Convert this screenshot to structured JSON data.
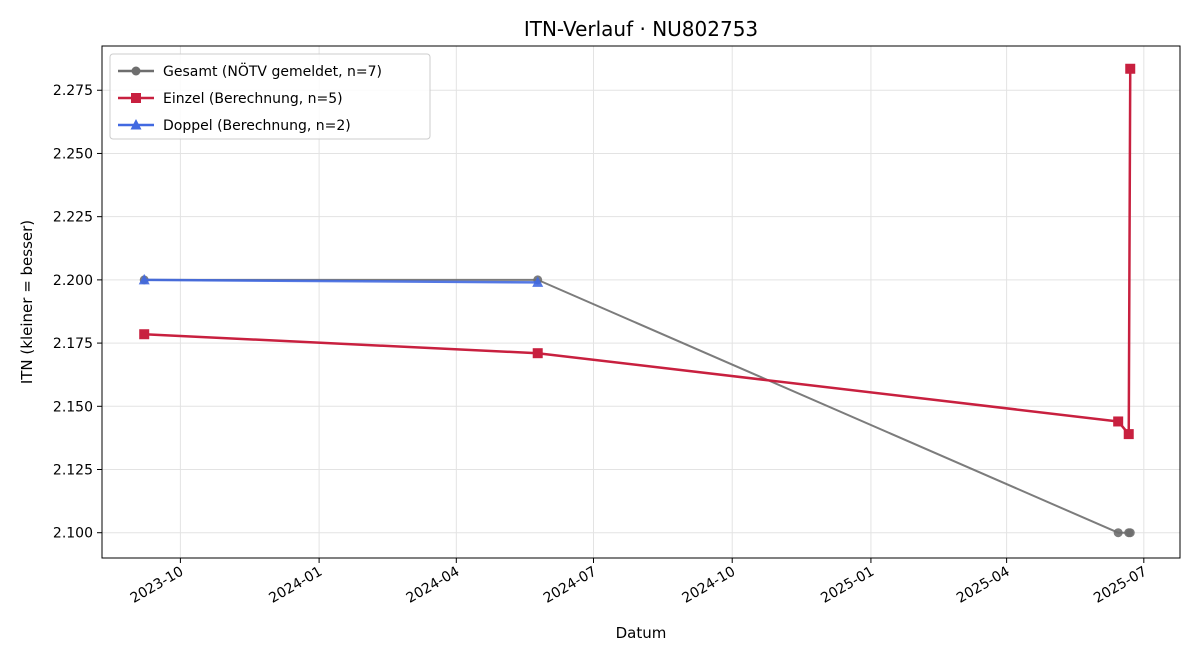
{
  "chart_data": {
    "type": "line",
    "title": "ITN-Verlauf · NU802753",
    "xlabel": "Datum",
    "ylabel": "ITN  (kleiner = besser)",
    "x_type": "date",
    "xlim": [
      "2023-08-10",
      "2025-07-25"
    ],
    "ylim": [
      2.09,
      2.2925
    ],
    "x_ticks": [
      "2023-10-01",
      "2024-01-01",
      "2024-04-01",
      "2024-07-01",
      "2024-10-01",
      "2025-01-01",
      "2025-04-01",
      "2025-07-01"
    ],
    "x_tick_labels": [
      "2023-10",
      "2024-01",
      "2024-04",
      "2024-07",
      "2024-10",
      "2025-01",
      "2025-04",
      "2025-07"
    ],
    "y_ticks": [
      2.1,
      2.125,
      2.15,
      2.175,
      2.2,
      2.225,
      2.25,
      2.275
    ],
    "y_tick_labels": [
      "2.100",
      "2.125",
      "2.150",
      "2.175",
      "2.200",
      "2.225",
      "2.250",
      "2.275"
    ],
    "grid": true,
    "legend_position": "top-left",
    "series": [
      {
        "name": "Gesamt (NÖTV gemeldet, n=7)",
        "color": "#6e6e6e",
        "marker": "circle",
        "x": [
          "2023-09-07",
          "2024-05-25",
          "2025-06-14",
          "2025-06-21",
          "2025-06-22"
        ],
        "y": [
          2.2,
          2.2,
          2.1,
          2.1,
          2.1
        ]
      },
      {
        "name": "Einzel (Berechnung, n=5)",
        "color": "#c8203f",
        "marker": "square",
        "x": [
          "2023-09-07",
          "2024-05-25",
          "2025-06-14",
          "2025-06-21",
          "2025-06-22"
        ],
        "y": [
          2.1785,
          2.171,
          2.144,
          2.139,
          2.2835
        ]
      },
      {
        "name": "Doppel (Berechnung, n=2)",
        "color": "#4169e1",
        "marker": "triangle",
        "x": [
          "2023-09-07",
          "2024-05-25"
        ],
        "y": [
          2.2,
          2.199
        ]
      }
    ]
  }
}
